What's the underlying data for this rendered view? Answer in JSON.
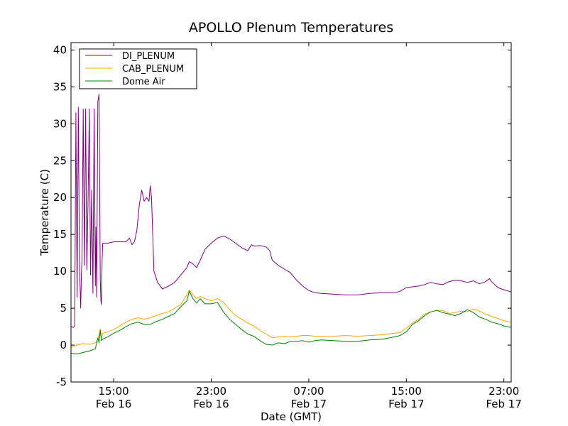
{
  "chart_data": {
    "type": "line",
    "title": "APOLLO Plenum Temperatures",
    "xlabel": "Date (GMT)",
    "ylabel": "Temperature (C)",
    "x_unit": "hours since Feb 16 00:00 GMT",
    "xlim": [
      11.5,
      47.6
    ],
    "ylim": [
      -5,
      41
    ],
    "y_ticks": [
      -5,
      0,
      5,
      10,
      15,
      20,
      25,
      30,
      35,
      40
    ],
    "x_ticks": [
      {
        "x": 15,
        "time": "15:00",
        "date": "Feb 16"
      },
      {
        "x": 23,
        "time": "23:00",
        "date": "Feb 16"
      },
      {
        "x": 31,
        "time": "07:00",
        "date": "Feb 17"
      },
      {
        "x": 39,
        "time": "15:00",
        "date": "Feb 17"
      },
      {
        "x": 47,
        "time": "23:00",
        "date": "Feb 17"
      }
    ],
    "grid": false,
    "legend_position": "top-left",
    "series": [
      {
        "name": "DI_PLENUM",
        "color": "#800080",
        "points": [
          [
            11.5,
            2.5
          ],
          [
            11.7,
            2.4
          ],
          [
            11.8,
            2.6
          ],
          [
            11.9,
            31.5
          ],
          [
            12.0,
            6.5
          ],
          [
            12.1,
            32.2
          ],
          [
            12.2,
            10.5
          ],
          [
            12.25,
            7.5
          ],
          [
            12.3,
            5.0
          ],
          [
            12.35,
            9.5
          ],
          [
            12.4,
            11.5
          ],
          [
            12.5,
            32.0
          ],
          [
            12.6,
            10.8
          ],
          [
            12.7,
            32.0
          ],
          [
            12.8,
            10.2
          ],
          [
            12.9,
            19.5
          ],
          [
            13.0,
            32.0
          ],
          [
            13.1,
            9.5
          ],
          [
            13.2,
            21.0
          ],
          [
            13.3,
            7.0
          ],
          [
            13.4,
            32.0
          ],
          [
            13.5,
            8.0
          ],
          [
            13.55,
            16.0
          ],
          [
            13.6,
            6.5
          ],
          [
            13.7,
            33.0
          ],
          [
            13.8,
            34.0
          ],
          [
            13.9,
            9.0
          ],
          [
            13.95,
            6.0
          ],
          [
            14.0,
            5.5
          ],
          [
            14.05,
            11.5
          ],
          [
            14.1,
            13.8
          ],
          [
            14.5,
            13.8
          ],
          [
            15.0,
            14.0
          ],
          [
            15.5,
            14.0
          ],
          [
            16.0,
            14.0
          ],
          [
            16.3,
            14.5
          ],
          [
            16.5,
            13.6
          ],
          [
            16.7,
            14.0
          ],
          [
            16.9,
            15.5
          ],
          [
            17.1,
            19.0
          ],
          [
            17.3,
            21.0
          ],
          [
            17.5,
            19.5
          ],
          [
            17.7,
            20.0
          ],
          [
            17.9,
            19.5
          ],
          [
            18.0,
            21.6
          ],
          [
            18.1,
            20.0
          ],
          [
            18.3,
            10.0
          ],
          [
            18.6,
            8.5
          ],
          [
            19.0,
            7.6
          ],
          [
            19.5,
            8.0
          ],
          [
            20.0,
            8.5
          ],
          [
            20.5,
            9.5
          ],
          [
            21.0,
            10.5
          ],
          [
            21.2,
            11.3
          ],
          [
            21.5,
            11.0
          ],
          [
            21.8,
            10.5
          ],
          [
            22.1,
            11.5
          ],
          [
            22.5,
            13.0
          ],
          [
            23.0,
            13.8
          ],
          [
            23.5,
            14.5
          ],
          [
            24.0,
            14.8
          ],
          [
            24.5,
            14.4
          ],
          [
            25.0,
            13.8
          ],
          [
            25.5,
            13.2
          ],
          [
            26.0,
            12.8
          ],
          [
            26.3,
            13.6
          ],
          [
            26.6,
            13.4
          ],
          [
            27.0,
            13.5
          ],
          [
            27.5,
            13.3
          ],
          [
            27.8,
            12.8
          ],
          [
            28.0,
            11.5
          ],
          [
            28.5,
            10.8
          ],
          [
            29.0,
            10.3
          ],
          [
            29.5,
            9.8
          ],
          [
            30.0,
            8.8
          ],
          [
            30.5,
            8.0
          ],
          [
            31.0,
            7.4
          ],
          [
            31.5,
            7.1
          ],
          [
            32.0,
            7.0
          ],
          [
            33.0,
            6.9
          ],
          [
            34.0,
            6.8
          ],
          [
            35.0,
            6.8
          ],
          [
            36.0,
            7.0
          ],
          [
            37.0,
            7.1
          ],
          [
            38.0,
            7.1
          ],
          [
            38.5,
            7.3
          ],
          [
            39.0,
            7.8
          ],
          [
            39.5,
            7.9
          ],
          [
            40.0,
            8.0
          ],
          [
            40.5,
            8.2
          ],
          [
            41.0,
            8.5
          ],
          [
            41.5,
            8.3
          ],
          [
            42.0,
            8.2
          ],
          [
            42.5,
            8.6
          ],
          [
            43.0,
            8.8
          ],
          [
            43.5,
            8.7
          ],
          [
            44.0,
            8.5
          ],
          [
            44.5,
            8.7
          ],
          [
            45.0,
            8.3
          ],
          [
            45.5,
            8.6
          ],
          [
            45.8,
            9.0
          ],
          [
            46.0,
            8.6
          ],
          [
            46.5,
            7.8
          ],
          [
            47.0,
            7.5
          ],
          [
            47.6,
            7.2
          ]
        ]
      },
      {
        "name": "CAB_PLENUM",
        "color": "#FFA500",
        "points": [
          [
            11.5,
            -0.3
          ],
          [
            12.0,
            0.0
          ],
          [
            12.5,
            0.2
          ],
          [
            13.0,
            0.1
          ],
          [
            13.5,
            0.3
          ],
          [
            13.7,
            0.8
          ],
          [
            13.8,
            1.5
          ],
          [
            13.9,
            2.2
          ],
          [
            14.0,
            1.0
          ],
          [
            14.1,
            1.6
          ],
          [
            14.5,
            1.8
          ],
          [
            15.0,
            2.1
          ],
          [
            15.5,
            2.6
          ],
          [
            16.0,
            3.1
          ],
          [
            16.5,
            3.5
          ],
          [
            17.0,
            3.7
          ],
          [
            17.5,
            3.5
          ],
          [
            18.0,
            3.7
          ],
          [
            18.5,
            4.0
          ],
          [
            19.0,
            4.3
          ],
          [
            19.5,
            4.5
          ],
          [
            20.0,
            5.0
          ],
          [
            20.5,
            5.5
          ],
          [
            21.0,
            6.8
          ],
          [
            21.2,
            7.5
          ],
          [
            21.5,
            6.8
          ],
          [
            21.8,
            6.3
          ],
          [
            22.1,
            6.6
          ],
          [
            22.5,
            6.3
          ],
          [
            23.0,
            6.0
          ],
          [
            23.5,
            6.3
          ],
          [
            24.0,
            5.8
          ],
          [
            24.5,
            4.8
          ],
          [
            25.0,
            4.0
          ],
          [
            25.5,
            3.5
          ],
          [
            26.0,
            3.0
          ],
          [
            26.5,
            2.6
          ],
          [
            27.0,
            2.0
          ],
          [
            27.5,
            1.5
          ],
          [
            28.0,
            1.0
          ],
          [
            28.5,
            1.1
          ],
          [
            29.0,
            1.2
          ],
          [
            29.5,
            1.1
          ],
          [
            30.0,
            1.2
          ],
          [
            30.5,
            1.3
          ],
          [
            31.0,
            1.3
          ],
          [
            31.5,
            1.2
          ],
          [
            32.0,
            1.2
          ],
          [
            33.0,
            1.2
          ],
          [
            34.0,
            1.3
          ],
          [
            35.0,
            1.2
          ],
          [
            36.0,
            1.3
          ],
          [
            37.0,
            1.4
          ],
          [
            38.0,
            1.6
          ],
          [
            38.5,
            1.7
          ],
          [
            39.0,
            2.3
          ],
          [
            39.5,
            3.0
          ],
          [
            40.0,
            3.5
          ],
          [
            40.5,
            4.2
          ],
          [
            41.0,
            4.5
          ],
          [
            41.5,
            4.7
          ],
          [
            42.0,
            4.7
          ],
          [
            42.5,
            4.3
          ],
          [
            43.0,
            4.4
          ],
          [
            43.5,
            4.6
          ],
          [
            44.0,
            4.5
          ],
          [
            44.5,
            4.9
          ],
          [
            45.0,
            4.6
          ],
          [
            45.5,
            4.2
          ],
          [
            46.0,
            3.9
          ],
          [
            46.5,
            3.6
          ],
          [
            47.0,
            3.3
          ],
          [
            47.6,
            3.1
          ]
        ]
      },
      {
        "name": "Dome Air",
        "color": "#008000",
        "points": [
          [
            11.5,
            -1.1
          ],
          [
            12.0,
            -1.2
          ],
          [
            12.5,
            -1.0
          ],
          [
            13.0,
            -0.8
          ],
          [
            13.5,
            -0.5
          ],
          [
            13.7,
            1.0
          ],
          [
            13.8,
            0.3
          ],
          [
            13.9,
            2.0
          ],
          [
            14.0,
            0.6
          ],
          [
            14.1,
            0.8
          ],
          [
            14.5,
            1.1
          ],
          [
            15.0,
            1.6
          ],
          [
            15.5,
            2.0
          ],
          [
            16.0,
            2.5
          ],
          [
            16.5,
            2.9
          ],
          [
            17.0,
            3.1
          ],
          [
            17.5,
            2.8
          ],
          [
            18.0,
            2.8
          ],
          [
            18.5,
            3.2
          ],
          [
            19.0,
            3.5
          ],
          [
            19.5,
            3.9
          ],
          [
            20.0,
            4.3
          ],
          [
            20.5,
            5.2
          ],
          [
            21.0,
            6.0
          ],
          [
            21.2,
            7.3
          ],
          [
            21.5,
            6.3
          ],
          [
            21.8,
            5.7
          ],
          [
            22.1,
            6.3
          ],
          [
            22.5,
            5.6
          ],
          [
            23.0,
            5.6
          ],
          [
            23.5,
            5.8
          ],
          [
            24.0,
            4.5
          ],
          [
            24.5,
            3.5
          ],
          [
            25.0,
            2.8
          ],
          [
            25.5,
            2.1
          ],
          [
            26.0,
            1.5
          ],
          [
            26.5,
            1.2
          ],
          [
            27.0,
            0.6
          ],
          [
            27.5,
            0.1
          ],
          [
            28.0,
            0.0
          ],
          [
            28.5,
            0.3
          ],
          [
            29.0,
            0.2
          ],
          [
            29.5,
            0.5
          ],
          [
            30.0,
            0.5
          ],
          [
            30.5,
            0.6
          ],
          [
            31.0,
            0.4
          ],
          [
            31.5,
            0.6
          ],
          [
            32.0,
            0.7
          ],
          [
            33.0,
            0.6
          ],
          [
            34.0,
            0.5
          ],
          [
            35.0,
            0.5
          ],
          [
            36.0,
            0.7
          ],
          [
            37.0,
            0.8
          ],
          [
            38.0,
            1.1
          ],
          [
            38.5,
            1.3
          ],
          [
            39.0,
            1.8
          ],
          [
            39.5,
            2.8
          ],
          [
            40.0,
            3.3
          ],
          [
            40.5,
            4.0
          ],
          [
            41.0,
            4.5
          ],
          [
            41.5,
            4.7
          ],
          [
            42.0,
            4.4
          ],
          [
            42.5,
            4.2
          ],
          [
            43.0,
            4.0
          ],
          [
            43.5,
            4.3
          ],
          [
            44.0,
            4.8
          ],
          [
            44.5,
            4.4
          ],
          [
            45.0,
            3.8
          ],
          [
            45.5,
            3.5
          ],
          [
            46.0,
            3.1
          ],
          [
            46.5,
            2.9
          ],
          [
            47.0,
            2.6
          ],
          [
            47.6,
            2.4
          ]
        ]
      }
    ]
  }
}
